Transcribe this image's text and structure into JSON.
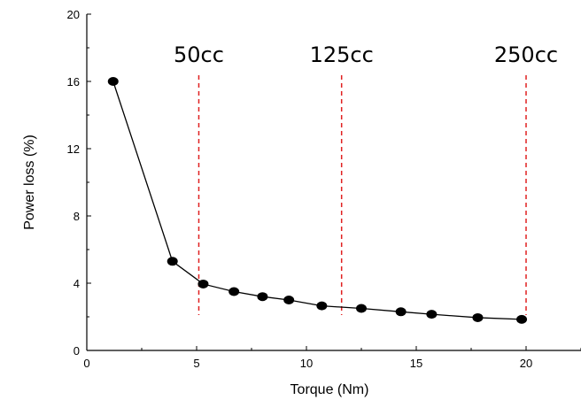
{
  "chart_data": {
    "type": "line",
    "title": "",
    "xlabel": "Torque (Nm)",
    "ylabel": "Power loss (%)",
    "xlim": [
      0,
      22.5
    ],
    "ylim": [
      0,
      20
    ],
    "x_ticks": [
      0,
      5,
      10,
      15,
      20
    ],
    "y_ticks": [
      0,
      4,
      8,
      12,
      16,
      20
    ],
    "grid": false,
    "legend": "none",
    "series": [
      {
        "color": "#000000",
        "marker": "circle",
        "points": [
          {
            "x": 1.2,
            "y": 16.0
          },
          {
            "x": 3.9,
            "y": 5.3
          },
          {
            "x": 5.3,
            "y": 3.95
          },
          {
            "x": 6.7,
            "y": 3.5
          },
          {
            "x": 8.0,
            "y": 3.2
          },
          {
            "x": 9.2,
            "y": 3.0
          },
          {
            "x": 10.7,
            "y": 2.65
          },
          {
            "x": 12.5,
            "y": 2.5
          },
          {
            "x": 14.3,
            "y": 2.3
          },
          {
            "x": 15.7,
            "y": 2.15
          },
          {
            "x": 17.8,
            "y": 1.95
          },
          {
            "x": 19.8,
            "y": 1.85
          }
        ]
      }
    ],
    "annotations": [
      {
        "text": "50cc",
        "x": 5.1,
        "color": "#e02020",
        "style": "dashed-vertical-line"
      },
      {
        "text": "125cc",
        "x": 11.6,
        "color": "#e02020",
        "style": "dashed-vertical-line"
      },
      {
        "text": "250cc",
        "x": 20.0,
        "color": "#e02020",
        "style": "dashed-vertical-line"
      }
    ]
  }
}
